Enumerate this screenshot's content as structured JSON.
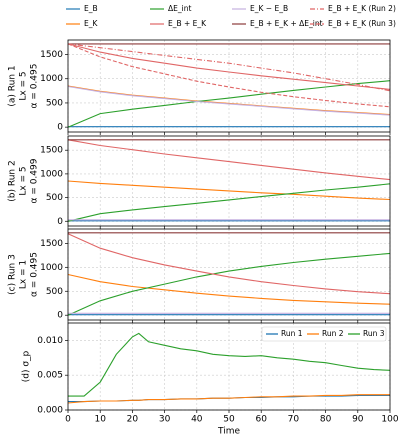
{
  "chart_data": [
    {
      "type": "line",
      "ylabel": [
        "(a) Run 1",
        "Lx = 5",
        "α = 0.495"
      ],
      "x": [
        0,
        10,
        20,
        30,
        40,
        50,
        60,
        70,
        80,
        90,
        100
      ],
      "xlim": [
        0,
        100
      ],
      "xticks": [
        0,
        10,
        20,
        30,
        40,
        50,
        60,
        70,
        80,
        90,
        100
      ],
      "ylim": [
        -100,
        1800
      ],
      "yticks": [
        0,
        500,
        1000,
        1500
      ],
      "grid": true,
      "legend": "top",
      "series": [
        {
          "name": "E_B",
          "color": "#1f77b4",
          "style": "solid",
          "values": [
            10,
            10,
            10,
            10,
            10,
            10,
            10,
            10,
            10,
            10,
            10
          ]
        },
        {
          "name": "E_K",
          "color": "#ff7f0e",
          "style": "solid",
          "values": [
            850,
            740,
            660,
            600,
            540,
            490,
            440,
            390,
            340,
            300,
            260
          ]
        },
        {
          "name": "ΔE_int",
          "color": "#2ca02c",
          "style": "solid",
          "values": [
            0,
            280,
            370,
            450,
            530,
            600,
            680,
            760,
            830,
            900,
            960
          ]
        },
        {
          "name": "E_B + E_K",
          "color": "#e06666",
          "style": "solid",
          "values": [
            1720,
            1550,
            1420,
            1320,
            1220,
            1140,
            1060,
            990,
            920,
            850,
            780
          ]
        },
        {
          "name": "E_K − E_B",
          "color": "#c5b0e0",
          "style": "solid",
          "values": [
            840,
            730,
            650,
            590,
            530,
            480,
            430,
            380,
            330,
            290,
            250
          ]
        },
        {
          "name": "E_B + E_K + ΔE_int",
          "color": "#8c3b3b",
          "style": "solid",
          "values": [
            1720,
            1720,
            1720,
            1720,
            1720,
            1720,
            1720,
            1720,
            1720,
            1720,
            1720
          ]
        },
        {
          "name": "E_B + E_K (Run 2)",
          "color": "#e06666",
          "style": "dashdot",
          "values": [
            1720,
            1640,
            1560,
            1480,
            1400,
            1320,
            1220,
            1120,
            1000,
            880,
            750
          ]
        },
        {
          "name": "E_B + E_K (Run 3)",
          "color": "#e06666",
          "style": "dashed",
          "values": [
            1720,
            1450,
            1250,
            1100,
            950,
            830,
            720,
            630,
            550,
            480,
            420
          ]
        }
      ]
    },
    {
      "type": "line",
      "ylabel": [
        "(b) Run 2",
        "Lx = 5",
        "α = 0.499"
      ],
      "x": [
        0,
        10,
        20,
        30,
        40,
        50,
        60,
        70,
        80,
        90,
        100
      ],
      "xlim": [
        0,
        100
      ],
      "xticks": [
        0,
        10,
        20,
        30,
        40,
        50,
        60,
        70,
        80,
        90,
        100
      ],
      "ylim": [
        -100,
        1800
      ],
      "yticks": [
        0,
        500,
        1000,
        1500
      ],
      "grid": true,
      "series": [
        {
          "color": "#1f77b4",
          "style": "solid",
          "values": [
            10,
            10,
            10,
            10,
            10,
            10,
            10,
            10,
            10,
            10,
            10
          ]
        },
        {
          "color": "#ff7f0e",
          "style": "solid",
          "values": [
            850,
            800,
            760,
            720,
            680,
            640,
            600,
            570,
            530,
            490,
            460
          ]
        },
        {
          "color": "#2ca02c",
          "style": "solid",
          "values": [
            0,
            160,
            240,
            310,
            380,
            450,
            520,
            590,
            660,
            720,
            790
          ]
        },
        {
          "color": "#e06666",
          "style": "solid",
          "values": [
            1720,
            1600,
            1510,
            1420,
            1340,
            1260,
            1180,
            1100,
            1020,
            950,
            880
          ]
        },
        {
          "color": "#c5b0e0",
          "style": "solid",
          "values": [
            30,
            30,
            30,
            30,
            30,
            30,
            30,
            30,
            30,
            30,
            30
          ]
        },
        {
          "color": "#8c3b3b",
          "style": "solid",
          "values": [
            1720,
            1720,
            1720,
            1720,
            1720,
            1720,
            1720,
            1720,
            1720,
            1720,
            1720
          ]
        }
      ]
    },
    {
      "type": "line",
      "ylabel": [
        "(c) Run 3",
        "Lx = 1",
        "α = 0.495"
      ],
      "x": [
        0,
        10,
        20,
        30,
        40,
        50,
        60,
        70,
        80,
        90,
        100
      ],
      "xlim": [
        0,
        100
      ],
      "xticks": [
        0,
        10,
        20,
        30,
        40,
        50,
        60,
        70,
        80,
        90,
        100
      ],
      "ylim": [
        -100,
        1800
      ],
      "yticks": [
        0,
        500,
        1000,
        1500
      ],
      "grid": true,
      "series": [
        {
          "color": "#1f77b4",
          "style": "solid",
          "values": [
            10,
            10,
            10,
            10,
            10,
            10,
            10,
            10,
            10,
            10,
            10
          ]
        },
        {
          "color": "#ff7f0e",
          "style": "solid",
          "values": [
            850,
            700,
            600,
            530,
            460,
            400,
            350,
            310,
            280,
            250,
            230
          ]
        },
        {
          "color": "#2ca02c",
          "style": "solid",
          "values": [
            0,
            300,
            500,
            650,
            800,
            920,
            1020,
            1100,
            1170,
            1230,
            1290
          ]
        },
        {
          "color": "#e06666",
          "style": "solid",
          "values": [
            1700,
            1400,
            1200,
            1050,
            920,
            800,
            700,
            620,
            550,
            490,
            450
          ]
        },
        {
          "color": "#c5b0e0",
          "style": "solid",
          "values": [
            40,
            40,
            40,
            40,
            40,
            40,
            40,
            40,
            40,
            40,
            40
          ]
        },
        {
          "color": "#8c3b3b",
          "style": "solid",
          "values": [
            1720,
            1720,
            1720,
            1720,
            1720,
            1720,
            1720,
            1720,
            1720,
            1720,
            1720
          ]
        }
      ]
    },
    {
      "type": "line",
      "ylabel": [
        "(d) σ_p"
      ],
      "xlabel": "Time",
      "x": [
        0,
        5,
        10,
        15,
        20,
        22,
        25,
        30,
        35,
        40,
        45,
        50,
        55,
        60,
        65,
        70,
        75,
        80,
        85,
        90,
        95,
        100
      ],
      "xlim": [
        0,
        100
      ],
      "xticks": [
        0,
        10,
        20,
        30,
        40,
        50,
        60,
        70,
        80,
        90,
        100
      ],
      "ylim": [
        0,
        0.0125
      ],
      "yticks": [
        {
          "value": 0,
          "label": "0.000"
        },
        {
          "value": 0.005,
          "label": "0.005"
        },
        {
          "value": 0.01,
          "label": "0.010"
        }
      ],
      "grid": true,
      "legend": "upper right",
      "series": [
        {
          "name": "Run 1",
          "color": "#1f77b4",
          "style": "solid",
          "values": [
            0.0012,
            0.0012,
            0.0013,
            0.0013,
            0.0014,
            0.0014,
            0.0015,
            0.0015,
            0.0016,
            0.0016,
            0.0017,
            0.0017,
            0.0018,
            0.0018,
            0.0019,
            0.0019,
            0.002,
            0.002,
            0.002,
            0.0021,
            0.0021,
            0.0021
          ]
        },
        {
          "name": "Run 2",
          "color": "#ff7f0e",
          "style": "solid",
          "values": [
            0.001,
            0.0012,
            0.0013,
            0.0013,
            0.0014,
            0.0014,
            0.0015,
            0.0015,
            0.0016,
            0.0016,
            0.0017,
            0.0017,
            0.0018,
            0.0019,
            0.0019,
            0.002,
            0.002,
            0.0021,
            0.0021,
            0.0022,
            0.0022,
            0.0022
          ]
        },
        {
          "name": "Run 3",
          "color": "#2ca02c",
          "style": "solid",
          "values": [
            0.002,
            0.002,
            0.004,
            0.008,
            0.0105,
            0.011,
            0.0098,
            0.0093,
            0.0088,
            0.0085,
            0.008,
            0.0078,
            0.0077,
            0.0078,
            0.0075,
            0.0073,
            0.007,
            0.0068,
            0.0064,
            0.006,
            0.0058,
            0.0057
          ]
        }
      ]
    }
  ]
}
